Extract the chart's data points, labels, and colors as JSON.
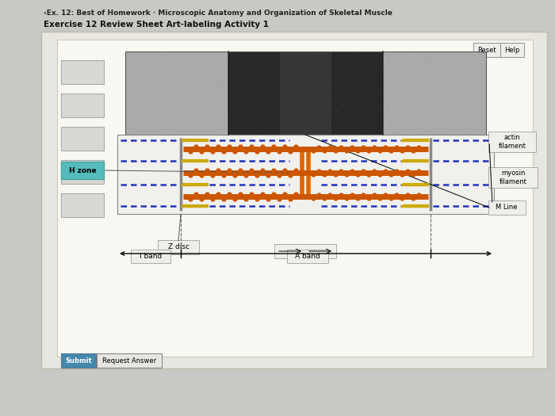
{
  "title_line1": "‹Ex. 12: Best of Homework · Microscopic Anatomy and Organization of Skeletal Muscle",
  "title_line2": "Exercise 12 Review Sheet Art-labeling Activity 1",
  "bg_color": "#c8c8c4",
  "panel_bg": "#e8e6e0",
  "inner_panel_bg": "#f0eeea",
  "labels": {
    "actin_filament": "actin\nfilament",
    "myosin_filament": "myosin\nfilament",
    "M_line": "M Line",
    "Z_disc": "Z disc",
    "I_band": "I band",
    "A_band": "A band",
    "H_zone": "H zone"
  },
  "button_reset": "Reset",
  "button_help": "Help",
  "button_submit": "Submit",
  "button_request": "Request Answer",
  "actin_color": "#2233bb",
  "myosin_color": "#cc5500",
  "yellow_color": "#ccaa00",
  "orange_m_color": "#dd6600",
  "z_disc_color": "#888888"
}
